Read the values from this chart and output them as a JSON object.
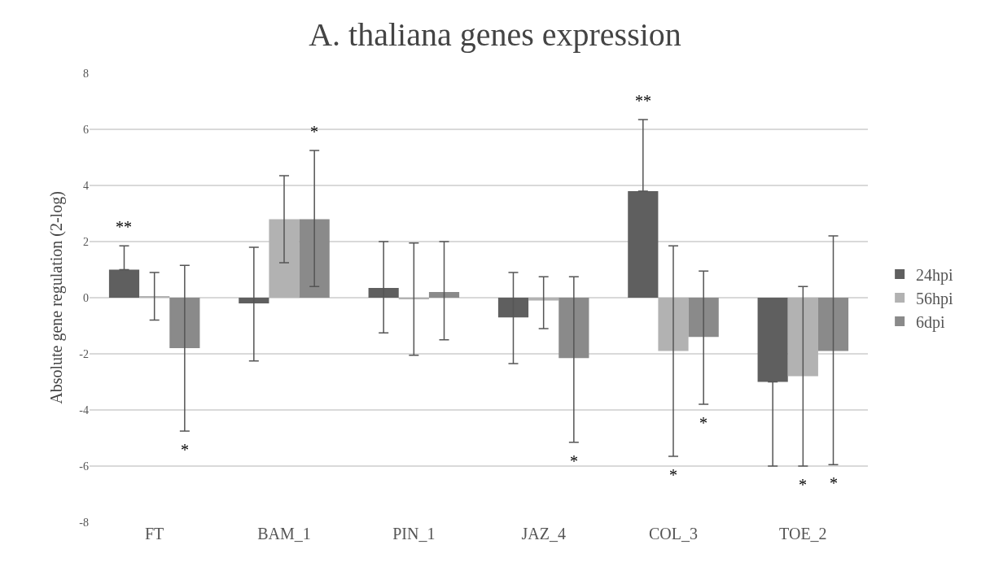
{
  "chart_data": {
    "type": "bar",
    "title": "A. thaliana genes expression",
    "ylabel": "Absolute gene regulation (2-log)",
    "categories": [
      "FT",
      "BAM_1",
      "PIN_1",
      "JAZ_4",
      "COL_3",
      "TOE_2"
    ],
    "series": [
      {
        "name": "24hpi",
        "color": "#5f5f5f",
        "values": [
          1.0,
          -0.2,
          0.35,
          -0.7,
          3.8,
          -3.0
        ],
        "errors": [
          [
            1.0,
            1.85
          ],
          [
            -2.25,
            1.8
          ],
          [
            -1.25,
            2.0
          ],
          [
            -2.35,
            0.9
          ],
          [
            3.8,
            6.35
          ],
          [
            -6.0,
            -3.0
          ]
        ]
      },
      {
        "name": "56hpi",
        "color": "#b2b2b2",
        "values": [
          0.05,
          2.8,
          -0.05,
          -0.1,
          -1.9,
          -2.8
        ],
        "errors": [
          [
            -0.8,
            0.9
          ],
          [
            1.25,
            4.35
          ],
          [
            -2.05,
            1.95
          ],
          [
            -1.1,
            0.75
          ],
          [
            -5.65,
            1.85
          ],
          [
            -6.0,
            0.4
          ]
        ]
      },
      {
        "name": "6dpi",
        "color": "#8a8a8a",
        "values": [
          -1.8,
          2.8,
          0.2,
          -2.15,
          -1.4,
          -1.9
        ],
        "errors": [
          [
            -4.75,
            1.15
          ],
          [
            0.4,
            5.25
          ],
          [
            -1.5,
            2.0
          ],
          [
            -5.15,
            0.75
          ],
          [
            -3.8,
            0.95
          ],
          [
            -5.95,
            2.2
          ]
        ]
      }
    ],
    "ylim": [
      -8,
      8
    ],
    "yticks": [
      -8,
      -6,
      -4,
      -2,
      0,
      2,
      4,
      6,
      8
    ],
    "grid": "y",
    "legend": "right",
    "annotations": [
      "**",
      "*",
      "*",
      "*",
      "**",
      "*",
      "*",
      "*",
      "*"
    ]
  }
}
